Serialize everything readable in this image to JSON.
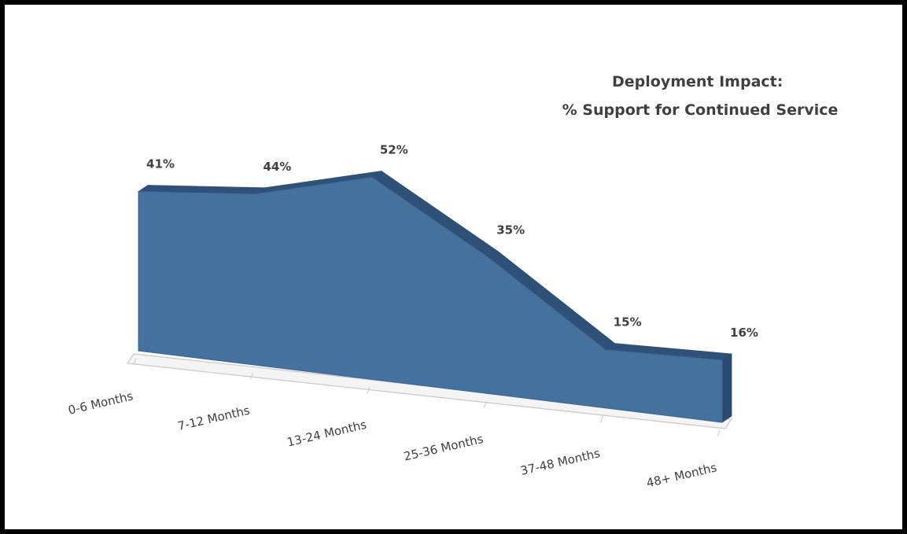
{
  "chart_data": {
    "type": "area",
    "title_lines": [
      "Deployment Impact:",
      "% Support for Continued Service"
    ],
    "categories": [
      "0-6 Months",
      "7-12 Months",
      "13-24 Months",
      "25-36 Months",
      "37-48 Months",
      "48+ Months"
    ],
    "values": [
      41,
      44,
      52,
      35,
      15,
      16
    ],
    "value_labels": [
      "41%",
      "44%",
      "52%",
      "35%",
      "15%",
      "16%"
    ],
    "grid": false,
    "legend": false,
    "three_d": true,
    "colors": {
      "front": "#45719F",
      "top": "#2F5178",
      "side": "#2A4A70",
      "floor_edge": "#C8C8C8",
      "floor": "#F4F4F4",
      "text": "#404040",
      "frame": "#000000"
    }
  }
}
